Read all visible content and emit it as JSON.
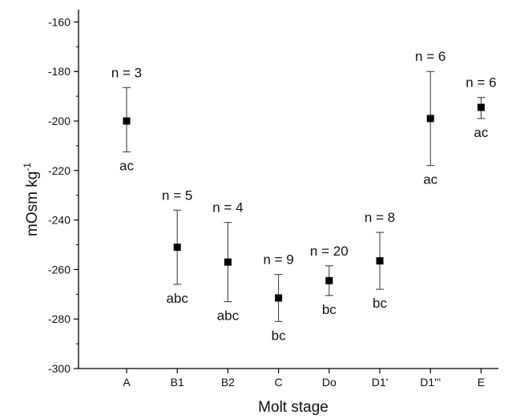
{
  "chart_data": {
    "type": "scatter",
    "xlabel": "Molt stage",
    "ylabel_base": "mOsm kg",
    "ylabel_exp": "-1",
    "ylim": [
      -300,
      -155
    ],
    "yticks": [
      -300,
      -280,
      -260,
      -240,
      -220,
      -200,
      -180,
      -160
    ],
    "grid": false,
    "error_bars": true,
    "categories": [
      "A",
      "B1",
      "B2",
      "C",
      "Do",
      "D1'",
      "D1'''",
      "E"
    ],
    "points": [
      {
        "category": "A",
        "mean": -200,
        "err_low": -212.5,
        "err_high": -186.5,
        "n_label": "n = 3",
        "group": "ac"
      },
      {
        "category": "B1",
        "mean": -251,
        "err_low": -266,
        "err_high": -236,
        "n_label": "n = 5",
        "group": "abc"
      },
      {
        "category": "B2",
        "mean": -257,
        "err_low": -273,
        "err_high": -241,
        "n_label": "n = 4",
        "group": "abc"
      },
      {
        "category": "C",
        "mean": -271.5,
        "err_low": -281,
        "err_high": -262,
        "n_label": "n = 9",
        "group": "bc"
      },
      {
        "category": "Do",
        "mean": -264.5,
        "err_low": -270.5,
        "err_high": -258.5,
        "n_label": "n = 20",
        "group": "bc"
      },
      {
        "category": "D1'",
        "mean": -256.5,
        "err_low": -268,
        "err_high": -245,
        "n_label": "n = 8",
        "group": "bc"
      },
      {
        "category": "D1'''",
        "mean": -199,
        "err_low": -218,
        "err_high": -180,
        "n_label": "n = 6",
        "group": "ac"
      },
      {
        "category": "E",
        "mean": -194.5,
        "err_low": -199,
        "err_high": -190.5,
        "n_label": "n = 6",
        "group": "ac"
      }
    ]
  }
}
